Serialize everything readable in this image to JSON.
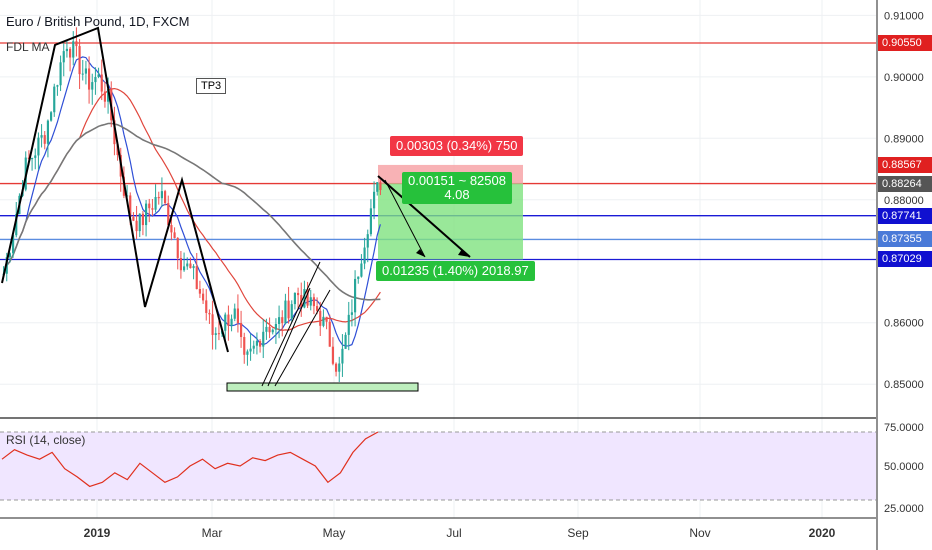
{
  "header": {
    "title": "Euro / British Pound, 1D, FXCM",
    "indicator": "FDL MA"
  },
  "annotations": {
    "tp3": "TP3",
    "risk_box": "0.00303 (0.34%) 750",
    "mid_box_line1": "0.00151 ~ 82508",
    "mid_box_line2": "4.08",
    "reward_box": "0.01235 (1.40%) 2018.97"
  },
  "rsi": {
    "label": "RSI (14, close)",
    "ticks": [
      "75.0000",
      "50.0000",
      "25.0000"
    ]
  },
  "price_tags": [
    {
      "label": "0.90550",
      "value": 0.9055,
      "color": "#e02020"
    },
    {
      "label": "0.88567",
      "value": 0.88567,
      "color": "#e02020"
    },
    {
      "label": "0.88264",
      "value": 0.88264,
      "color": "#555555"
    },
    {
      "label": "0.87741",
      "value": 0.87741,
      "color": "#1010d0"
    },
    {
      "label": "0.87355",
      "value": 0.87355,
      "color": "#4a7ad8"
    },
    {
      "label": "0.87029",
      "value": 0.87029,
      "color": "#1010d0"
    }
  ],
  "colors": {
    "up": "#26a69a",
    "down": "#ef5350",
    "risk": "#f23645",
    "reward": "#22c55e",
    "rsi_line": "#e0301e",
    "rsi_band": "#f0e6ff"
  },
  "chart_data": {
    "type": "candlestick",
    "title": "Euro / British Pound, 1D, FXCM",
    "y_ticks": [
      "0.91000",
      "0.90000",
      "0.89000",
      "0.88000",
      "0.86000",
      "0.85000"
    ],
    "y_tick_values": [
      0.91,
      0.9,
      0.89,
      0.88,
      0.86,
      0.85
    ],
    "x_ticks": [
      "2019",
      "Mar",
      "May",
      "Jul",
      "Sep",
      "Nov",
      "2020"
    ],
    "ylim": [
      0.8445,
      0.9125
    ],
    "horizontal_levels": [
      0.9055,
      0.88264,
      0.87741,
      0.87355,
      0.87029
    ],
    "close_path": [
      0.868,
      0.876,
      0.885,
      0.888,
      0.891,
      0.899,
      0.906,
      0.903,
      0.899,
      0.9,
      0.896,
      0.886,
      0.878,
      0.876,
      0.879,
      0.881,
      0.876,
      0.87,
      0.868,
      0.864,
      0.858,
      0.86,
      0.862,
      0.853,
      0.856,
      0.86,
      0.859,
      0.862,
      0.865,
      0.863,
      0.862,
      0.858,
      0.852,
      0.86,
      0.87,
      0.878,
      0.883
    ],
    "rsi_values": [
      55,
      62,
      58,
      55,
      60,
      48,
      42,
      35,
      38,
      45,
      40,
      52,
      45,
      38,
      42,
      50,
      55,
      48,
      52,
      50,
      56,
      54,
      58,
      60,
      55,
      50,
      38,
      45,
      60,
      70,
      75
    ]
  }
}
